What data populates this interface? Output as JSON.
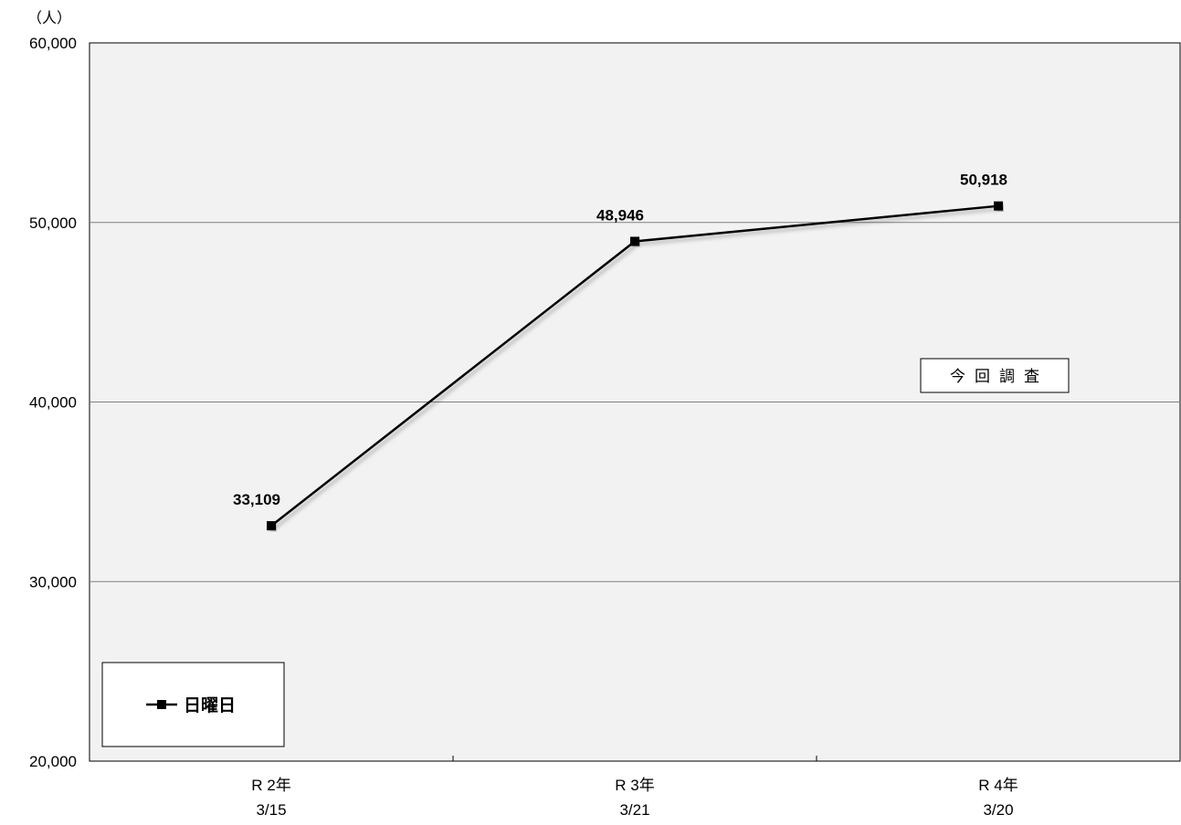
{
  "chart_data": {
    "type": "line",
    "y_unit_label": "（人）",
    "categories": [
      {
        "line1": "R 2年",
        "line2": "3/15"
      },
      {
        "line1": "R 3年",
        "line2": "3/21"
      },
      {
        "line1": "R 4年",
        "line2": "3/20"
      }
    ],
    "series": [
      {
        "name": "日曜日",
        "values": [
          33109,
          48946,
          50918
        ],
        "labels": [
          "33,109",
          "48,946",
          "50,918"
        ],
        "color": "#000000",
        "marker": "square"
      }
    ],
    "ylim": [
      20000,
      60000
    ],
    "yticks": [
      20000,
      30000,
      40000,
      50000,
      60000
    ],
    "ytick_labels": [
      "20,000",
      "30,000",
      "40,000",
      "50,000",
      "60,000"
    ],
    "grid": true,
    "plot_background": "#f2f2f2",
    "legend_position": "bottom-left",
    "annotation": "今回調査"
  }
}
